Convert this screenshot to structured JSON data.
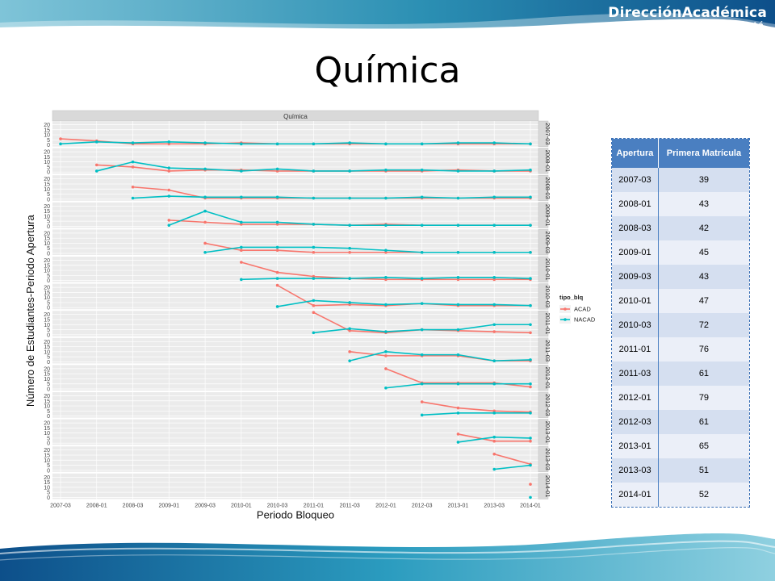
{
  "header": {
    "logo_main": "DirecciónAcadémica",
    "logo_sub": "Sede Bogotá"
  },
  "title": "Química",
  "chart_data": {
    "type": "line",
    "facet_title": "Química",
    "xlabel": "Periodo Bloqueo",
    "ylabel": "Número de Estudiantes-Periodo Apertura",
    "periods": [
      "2007-03",
      "2008-01",
      "2008-03",
      "2009-01",
      "2009-03",
      "2010-01",
      "2010-03",
      "2011-01",
      "2011-03",
      "2012-01",
      "2012-03",
      "2013-01",
      "2013-03",
      "2014-01"
    ],
    "y_ticks": [
      0,
      5,
      10,
      15,
      20
    ],
    "ylim": [
      0,
      22
    ],
    "legend_title": "tipo_blq",
    "legend": [
      "ACAD",
      "NACAD"
    ],
    "colors": {
      "ACAD": "#F8766D",
      "NACAD": "#00BFC4"
    },
    "facets": [
      {
        "label": "2007-03",
        "ACAD": [
          6,
          4,
          1,
          1,
          1,
          2,
          1,
          1,
          1,
          1,
          1,
          1,
          1,
          1
        ],
        "NACAD": [
          1,
          3,
          2,
          3,
          2,
          1,
          1,
          1,
          2,
          1,
          1,
          2,
          2,
          1
        ]
      },
      {
        "label": "2008-01",
        "ACAD": [
          null,
          7,
          5,
          1,
          2,
          2,
          1,
          1,
          1,
          1,
          1,
          2,
          1,
          1
        ],
        "NACAD": [
          null,
          1,
          10,
          4,
          3,
          1,
          3,
          1,
          1,
          2,
          2,
          1,
          1,
          2
        ]
      },
      {
        "label": "2008-03",
        "ACAD": [
          null,
          null,
          12,
          9,
          1,
          1,
          1,
          1,
          1,
          1,
          1,
          1,
          1,
          1
        ],
        "NACAD": [
          null,
          null,
          1,
          3,
          2,
          2,
          2,
          1,
          1,
          1,
          2,
          1,
          2,
          2
        ]
      },
      {
        "label": "2009-01",
        "ACAD": [
          null,
          null,
          null,
          6,
          4,
          2,
          2,
          2,
          1,
          2,
          1,
          1,
          1,
          1
        ],
        "NACAD": [
          null,
          null,
          null,
          1,
          15,
          4,
          4,
          2,
          1,
          1,
          1,
          1,
          1,
          1
        ]
      },
      {
        "label": "2009-03",
        "ACAD": [
          null,
          null,
          null,
          null,
          10,
          3,
          3,
          1,
          1,
          1,
          1,
          1,
          1,
          1
        ],
        "NACAD": [
          null,
          null,
          null,
          null,
          1,
          6,
          6,
          6,
          5,
          3,
          1,
          1,
          1,
          1
        ]
      },
      {
        "label": "2010-01",
        "ACAD": [
          null,
          null,
          null,
          null,
          null,
          18,
          8,
          4,
          2,
          1,
          1,
          1,
          1,
          1
        ],
        "NACAD": [
          null,
          null,
          null,
          null,
          null,
          1,
          2,
          2,
          2,
          3,
          2,
          3,
          3,
          2
        ]
      },
      {
        "label": "2010-03",
        "ACAD": [
          null,
          null,
          null,
          null,
          null,
          null,
          22,
          2,
          3,
          2,
          4,
          2,
          2,
          2
        ],
        "NACAD": [
          null,
          null,
          null,
          null,
          null,
          null,
          1,
          7,
          5,
          3,
          4,
          3,
          3,
          2
        ]
      },
      {
        "label": "2011-01",
        "ACAD": [
          null,
          null,
          null,
          null,
          null,
          null,
          null,
          22,
          4,
          2,
          5,
          4,
          3,
          2
        ],
        "NACAD": [
          null,
          null,
          null,
          null,
          null,
          null,
          null,
          2,
          6,
          3,
          5,
          5,
          10,
          10
        ]
      },
      {
        "label": "2011-03",
        "ACAD": [
          null,
          null,
          null,
          null,
          null,
          null,
          null,
          null,
          10,
          6,
          6,
          6,
          1,
          1
        ],
        "NACAD": [
          null,
          null,
          null,
          null,
          null,
          null,
          null,
          null,
          1,
          10,
          7,
          7,
          1,
          2
        ]
      },
      {
        "label": "2012-01",
        "ACAD": [
          null,
          null,
          null,
          null,
          null,
          null,
          null,
          null,
          null,
          20,
          6,
          6,
          6,
          2
        ],
        "NACAD": [
          null,
          null,
          null,
          null,
          null,
          null,
          null,
          null,
          null,
          1,
          5,
          5,
          5,
          5
        ]
      },
      {
        "label": "2012-03",
        "ACAD": [
          null,
          null,
          null,
          null,
          null,
          null,
          null,
          null,
          null,
          null,
          14,
          8,
          5,
          4
        ],
        "NACAD": [
          null,
          null,
          null,
          null,
          null,
          null,
          null,
          null,
          null,
          null,
          1,
          3,
          3,
          3
        ]
      },
      {
        "label": "2013-01",
        "ACAD": [
          null,
          null,
          null,
          null,
          null,
          null,
          null,
          null,
          null,
          null,
          null,
          9,
          2,
          2
        ],
        "NACAD": [
          null,
          null,
          null,
          null,
          null,
          null,
          null,
          null,
          null,
          null,
          null,
          1,
          6,
          5
        ]
      },
      {
        "label": "2013-03",
        "ACAD": [
          null,
          null,
          null,
          null,
          null,
          null,
          null,
          null,
          null,
          null,
          null,
          null,
          16,
          6
        ],
        "NACAD": [
          null,
          null,
          null,
          null,
          null,
          null,
          null,
          null,
          null,
          null,
          null,
          null,
          1,
          5
        ]
      },
      {
        "label": "2014-01",
        "ACAD": [
          null,
          null,
          null,
          null,
          null,
          null,
          null,
          null,
          null,
          null,
          null,
          null,
          null,
          13
        ],
        "NACAD": [
          null,
          null,
          null,
          null,
          null,
          null,
          null,
          null,
          null,
          null,
          null,
          null,
          null,
          0
        ]
      }
    ]
  },
  "table": {
    "headers": [
      "Apertura",
      "Primera Matrícula"
    ],
    "rows": [
      [
        "2007-03",
        "39"
      ],
      [
        "2008-01",
        "43"
      ],
      [
        "2008-03",
        "42"
      ],
      [
        "2009-01",
        "45"
      ],
      [
        "2009-03",
        "43"
      ],
      [
        "2010-01",
        "47"
      ],
      [
        "2010-03",
        "72"
      ],
      [
        "2011-01",
        "76"
      ],
      [
        "2011-03",
        "61"
      ],
      [
        "2012-01",
        "79"
      ],
      [
        "2012-03",
        "61"
      ],
      [
        "2013-01",
        "65"
      ],
      [
        "2013-03",
        "51"
      ],
      [
        "2014-01",
        "52"
      ]
    ]
  }
}
